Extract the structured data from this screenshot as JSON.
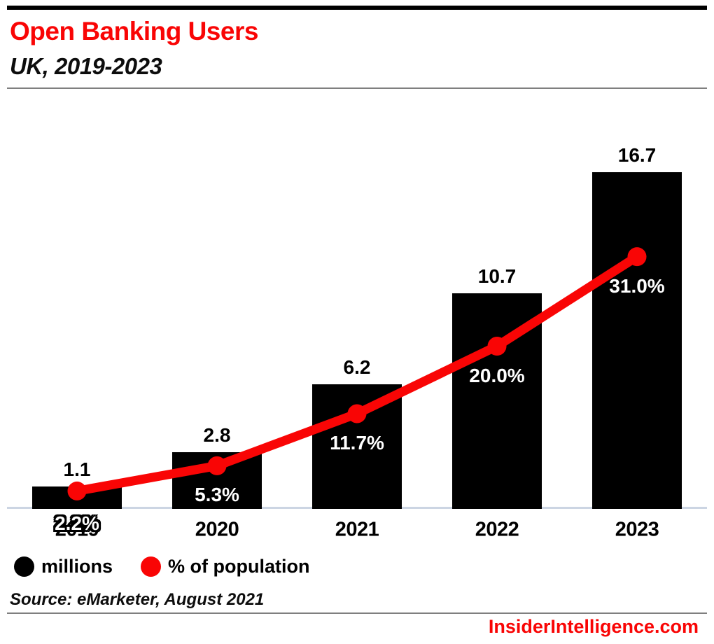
{
  "header": {
    "title": "Open Banking Users",
    "subtitle": "UK, 2019-2023"
  },
  "chart_data": {
    "type": "bar",
    "title": "Open Banking Users",
    "subtitle": "UK, 2019-2023",
    "categories": [
      "2019",
      "2020",
      "2021",
      "2022",
      "2023"
    ],
    "series": [
      {
        "name": "millions",
        "type": "bar",
        "color": "#000000",
        "values": [
          1.1,
          2.8,
          6.2,
          10.7,
          16.7
        ],
        "data_labels": [
          "1.1",
          "2.8",
          "6.2",
          "10.7",
          "16.7"
        ]
      },
      {
        "name": "% of population",
        "type": "line",
        "color": "#f90505",
        "values": [
          2.2,
          5.3,
          11.7,
          20.0,
          31.0
        ],
        "data_labels": [
          "2.2%",
          "5.3%",
          "11.7%",
          "20.0%",
          "31.0%"
        ]
      }
    ],
    "xlabel": "",
    "ylabel": "",
    "bar_axis_range": [
      0,
      20.4
    ],
    "pct_axis_range": [
      0,
      50.5
    ],
    "grid": false,
    "legend_position": "bottom-left"
  },
  "footer": {
    "source": "Source: eMarketer, August 2021",
    "site": "InsiderIntelligence.com"
  },
  "colors": {
    "brand_red": "#f90505",
    "bar_black": "#000000",
    "axis_line": "#ccd5e3",
    "divider_gray": "#7f7f7f",
    "background": "#ffffff"
  }
}
